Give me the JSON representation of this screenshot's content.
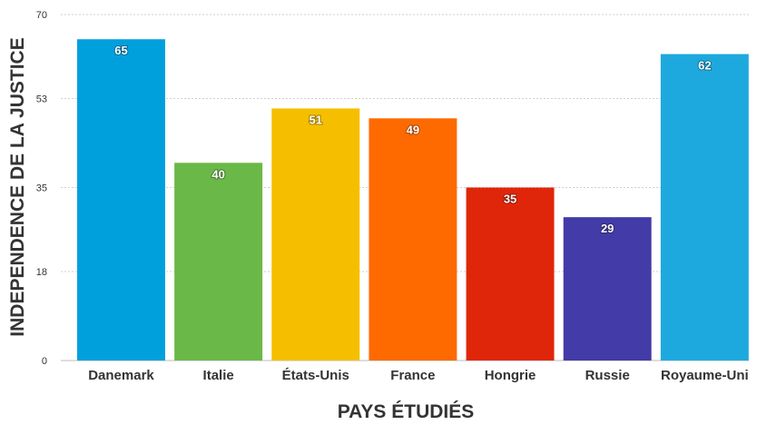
{
  "chart_data": {
    "type": "bar",
    "title": "",
    "xlabel": "PAYS ÉTUDIÉS",
    "ylabel": "INDEPENDENCE DE LA JUSTICE",
    "categories": [
      "Danemark",
      "Italie",
      "États-Unis",
      "France",
      "Hongrie",
      "Russie",
      "Royaume-Uni"
    ],
    "values": [
      65,
      40,
      51,
      49,
      35,
      29,
      62
    ],
    "colors": [
      "#00a0dc",
      "#6ab847",
      "#f5bf00",
      "#ff6a00",
      "#e0260a",
      "#423ba8",
      "#1ea9de"
    ],
    "ylim": [
      0,
      70
    ],
    "yticks": [
      0,
      18,
      35,
      53,
      70
    ],
    "grid": true,
    "show_data_labels": true,
    "legend": "none"
  }
}
